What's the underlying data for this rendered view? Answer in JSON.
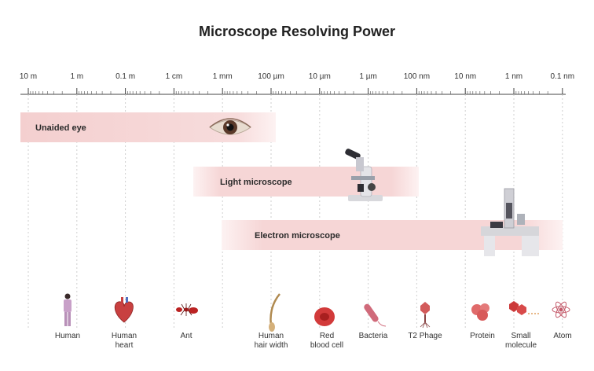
{
  "title": "Microscope Resolving Power",
  "scale": [
    "10 m",
    "1 m",
    "0.1 m",
    "1 cm",
    "1 mm",
    "100 µm",
    "10 µm",
    "1 µm",
    "100 nm",
    "10 nm",
    "1 nm",
    "0.1 nm"
  ],
  "bands": [
    {
      "label": "Unaided eye",
      "from": "10 m",
      "to": "100 µm"
    },
    {
      "label": "Light microscope",
      "from": "1 mm",
      "to": "100 nm"
    },
    {
      "label": "Electron microscope",
      "from": "1 mm",
      "to": "0.1 nm"
    }
  ],
  "objects": [
    {
      "lines": [
        "Human"
      ],
      "icon": "human-icon"
    },
    {
      "lines": [
        "Human",
        "heart"
      ],
      "icon": "heart-icon"
    },
    {
      "lines": [
        "Ant"
      ],
      "icon": "ant-icon"
    },
    {
      "lines": [
        "Human",
        "hair width"
      ],
      "icon": "hair-icon"
    },
    {
      "lines": [
        "Red",
        "blood cell"
      ],
      "icon": "red-blood-cell-icon"
    },
    {
      "lines": [
        "Bacteria"
      ],
      "icon": "bacteria-icon"
    },
    {
      "lines": [
        "T2 Phage"
      ],
      "icon": "phage-icon"
    },
    {
      "lines": [
        "Protein"
      ],
      "icon": "protein-icon"
    },
    {
      "lines": [
        "Small",
        "molecule"
      ],
      "icon": "small-molecule-icon"
    },
    {
      "lines": [
        "Atom"
      ],
      "icon": "atom-icon"
    }
  ],
  "colors": {
    "band": "#f6d6d6",
    "band_edge": "#fbeaea",
    "eye_iris": "#5a3a2a",
    "cell": "#d23a3a",
    "protein": "#e06a6a"
  }
}
